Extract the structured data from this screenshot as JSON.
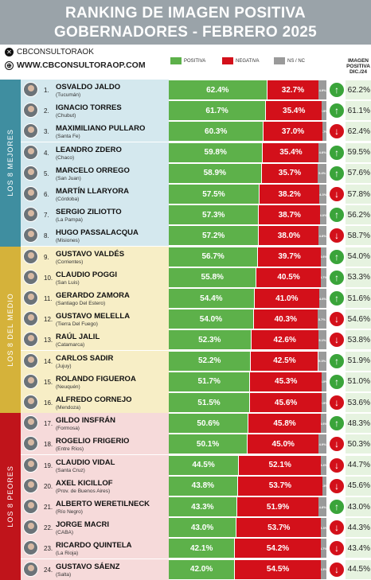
{
  "header": {
    "title_line1": "RANKING DE IMAGEN POSITIVA",
    "title_line2": "GOBERNADORES - FEBRERO 2025"
  },
  "social": {
    "handle": "CBCONSULTORAOK",
    "website": "WWW.CBCONSULTORAOP.COM",
    "x_icon": "x-logo-icon",
    "web_icon": "globe-icon"
  },
  "colors": {
    "positive": "#5db14a",
    "negative": "#d3101a",
    "ns": "#9a9a9a",
    "header": "#9aa3a9",
    "group_best": "#3f8ea0",
    "group_mid": "#d5b23a",
    "group_worst": "#c0141b",
    "row_best": "#d4e8ee",
    "row_mid": "#f7eec6",
    "row_worst": "#f6dada"
  },
  "chart_data": {
    "type": "bar",
    "stacked": true,
    "title": "RANKING DE IMAGEN POSITIVA GOBERNADORES - FEBRERO 2025",
    "legend": [
      "POSITIVA",
      "NEGATIVA",
      "NS / NC"
    ],
    "previous_column_label": "IMAGEN POSITIVA DIC./24",
    "xlim": [
      0,
      100
    ],
    "groups": [
      {
        "label": "LOS 8 MEJORES",
        "start": 1,
        "end": 8
      },
      {
        "label": "LOS 8 DEL MEDIO",
        "start": 9,
        "end": 16
      },
      {
        "label": "LOS 8 PEORES",
        "start": 17,
        "end": 24
      }
    ],
    "rows": [
      {
        "rank": "1.",
        "name": "OSVALDO JALDO",
        "province": "(Tucumán)",
        "positive": 62.4,
        "positive_label": "62.4%",
        "negative": 32.7,
        "negative_label": "32.7%",
        "ns": 4.9,
        "ns_label": "4.9%",
        "trend": "up",
        "previous_label": "62.2%"
      },
      {
        "rank": "2.",
        "name": "IGNACIO TORRES",
        "province": "(Chubut)",
        "positive": 61.7,
        "positive_label": "61.7%",
        "negative": 35.4,
        "negative_label": "35.4%",
        "ns": 2.9,
        "ns_label": "2.9%",
        "trend": "up",
        "previous_label": "61.1%"
      },
      {
        "rank": "3.",
        "name": "MAXIMILIANO PULLARO",
        "province": "(Santa Fe)",
        "positive": 60.3,
        "positive_label": "60.3%",
        "negative": 37.0,
        "negative_label": "37.0%",
        "ns": 2.7,
        "ns_label": "2.7%",
        "trend": "down",
        "previous_label": "62.4%"
      },
      {
        "rank": "4.",
        "name": "LEANDRO ZDERO",
        "province": "(Chaco)",
        "positive": 59.8,
        "positive_label": "59.8%",
        "negative": 35.4,
        "negative_label": "35.4%",
        "ns": 4.8,
        "ns_label": "4.8%",
        "trend": "up",
        "previous_label": "59.5%"
      },
      {
        "rank": "5.",
        "name": "MARCELO ORREGO",
        "province": "(San Juan)",
        "positive": 58.9,
        "positive_label": "58.9%",
        "negative": 35.7,
        "negative_label": "35.7%",
        "ns": 5.4,
        "ns_label": "5.4%",
        "trend": "up",
        "previous_label": "57.6%"
      },
      {
        "rank": "6.",
        "name": "MARTÍN LLARYORA",
        "province": "(Córdoba)",
        "positive": 57.5,
        "positive_label": "57.5%",
        "negative": 38.2,
        "negative_label": "38.2%",
        "ns": 4.3,
        "ns_label": "4.3%",
        "trend": "down",
        "previous_label": "57.8%"
      },
      {
        "rank": "7.",
        "name": "SERGIO ZILIOTTO",
        "province": "(La Pampa)",
        "positive": 57.3,
        "positive_label": "57.3%",
        "negative": 38.7,
        "negative_label": "38.7%",
        "ns": 4.0,
        "ns_label": "4.0%",
        "trend": "up",
        "previous_label": "56.2%"
      },
      {
        "rank": "8.",
        "name": "HUGO PASSALACQUA",
        "province": "(Misiones)",
        "positive": 57.2,
        "positive_label": "57.2%",
        "negative": 38.0,
        "negative_label": "38.0%",
        "ns": 4.8,
        "ns_label": "4.8%",
        "trend": "down",
        "previous_label": "58.7%"
      },
      {
        "rank": "9.",
        "name": "GUSTAVO VALDÉS",
        "province": "(Corrientes)",
        "positive": 56.7,
        "positive_label": "56.7%",
        "negative": 39.7,
        "negative_label": "39.7%",
        "ns": 3.6,
        "ns_label": "3.6%",
        "trend": "up",
        "previous_label": "54.0%"
      },
      {
        "rank": "10.",
        "name": "CLAUDIO POGGI",
        "province": "(San Luis)",
        "positive": 55.8,
        "positive_label": "55.8%",
        "negative": 40.5,
        "negative_label": "40.5%",
        "ns": 3.7,
        "ns_label": "3.7%",
        "trend": "up",
        "previous_label": "53.3%"
      },
      {
        "rank": "11.",
        "name": "GERARDO ZAMORA",
        "province": "(Santiago Del Estero)",
        "positive": 54.4,
        "positive_label": "54.4%",
        "negative": 41.0,
        "negative_label": "41.0%",
        "ns": 4.6,
        "ns_label": "4.6%",
        "trend": "up",
        "previous_label": "51.6%"
      },
      {
        "rank": "12.",
        "name": "GUSTAVO MELELLA",
        "province": "(Tierra Del Fuego)",
        "positive": 54.0,
        "positive_label": "54.0%",
        "negative": 40.3,
        "negative_label": "40.3%",
        "ns": 5.7,
        "ns_label": "5.7%",
        "trend": "down",
        "previous_label": "54.6%"
      },
      {
        "rank": "13.",
        "name": "RAÚL JALIL",
        "province": "(Catamarca)",
        "positive": 52.3,
        "positive_label": "52.3%",
        "negative": 42.6,
        "negative_label": "42.6%",
        "ns": 5.1,
        "ns_label": "5.1%",
        "trend": "down",
        "previous_label": "53.8%"
      },
      {
        "rank": "14.",
        "name": "CARLOS SADIR",
        "province": "(Jujuy)",
        "positive": 52.2,
        "positive_label": "52.2%",
        "negative": 42.5,
        "negative_label": "42.5%",
        "ns": 5.3,
        "ns_label": "5.3%",
        "trend": "up",
        "previous_label": "51.9%"
      },
      {
        "rank": "15.",
        "name": "ROLANDO FIGUEROA",
        "province": "(Neuquén)",
        "positive": 51.7,
        "positive_label": "51.7%",
        "negative": 45.3,
        "negative_label": "45.3%",
        "ns": 3.0,
        "ns_label": "3.0%",
        "trend": "up",
        "previous_label": "51.0%"
      },
      {
        "rank": "16.",
        "name": "ALFREDO CORNEJO",
        "province": "(Mendoza)",
        "positive": 51.5,
        "positive_label": "51.5%",
        "negative": 45.6,
        "negative_label": "45.6%",
        "ns": 2.9,
        "ns_label": "2.9%",
        "trend": "down",
        "previous_label": "53.6%"
      },
      {
        "rank": "17.",
        "name": "GILDO INSFRÁN",
        "province": "(Formosa)",
        "positive": 50.6,
        "positive_label": "50.6%",
        "negative": 45.8,
        "negative_label": "45.8%",
        "ns": 3.6,
        "ns_label": "3.6%",
        "trend": "up",
        "previous_label": "48.3%"
      },
      {
        "rank": "18.",
        "name": "ROGELIO FRIGERIO",
        "province": "(Entre Ríos)",
        "positive": 50.1,
        "positive_label": "50.1%",
        "negative": 45.0,
        "negative_label": "45.0%",
        "ns": 4.9,
        "ns_label": "4.9%",
        "trend": "down",
        "previous_label": "50.3%"
      },
      {
        "rank": "19.",
        "name": "CLAUDIO VIDAL",
        "province": "(Santa Cruz)",
        "positive": 44.5,
        "positive_label": "44.5%",
        "negative": 52.1,
        "negative_label": "52.1%",
        "ns": 3.4,
        "ns_label": "3.4%",
        "trend": "down",
        "previous_label": "44.7%"
      },
      {
        "rank": "20.",
        "name": "AXEL KICILLOF",
        "province": "(Prov. de Buenos Aires)",
        "positive": 43.8,
        "positive_label": "43.8%",
        "negative": 53.7,
        "negative_label": "53.7%",
        "ns": 2.5,
        "ns_label": "2.5%",
        "trend": "down",
        "previous_label": "45.6%"
      },
      {
        "rank": "21.",
        "name": "ALBERTO WERETILNECK",
        "province": "(Río Negro)",
        "positive": 43.3,
        "positive_label": "43.3%",
        "negative": 51.9,
        "negative_label": "51.9%",
        "ns": 4.8,
        "ns_label": "4.8%",
        "trend": "up",
        "previous_label": "43.0%"
      },
      {
        "rank": "22.",
        "name": "JORGE MACRI",
        "province": "(CABA)",
        "positive": 43.0,
        "positive_label": "43.0%",
        "negative": 53.7,
        "negative_label": "53.7%",
        "ns": 3.3,
        "ns_label": "3.3%",
        "trend": "down",
        "previous_label": "44.3%"
      },
      {
        "rank": "23.",
        "name": "RICARDO QUINTELA",
        "province": "(La Rioja)",
        "positive": 42.1,
        "positive_label": "42.1%",
        "negative": 54.2,
        "negative_label": "54.2%",
        "ns": 3.7,
        "ns_label": "3.7%",
        "trend": "down",
        "previous_label": "43.4%"
      },
      {
        "rank": "24.",
        "name": "GUSTAVO SÁENZ",
        "province": "(Salta)",
        "positive": 42.0,
        "positive_label": "42.0%",
        "negative": 54.5,
        "negative_label": "54.5%",
        "ns": 3.5,
        "ns_label": "3.5%",
        "trend": "down",
        "previous_label": "44.5%"
      }
    ]
  }
}
